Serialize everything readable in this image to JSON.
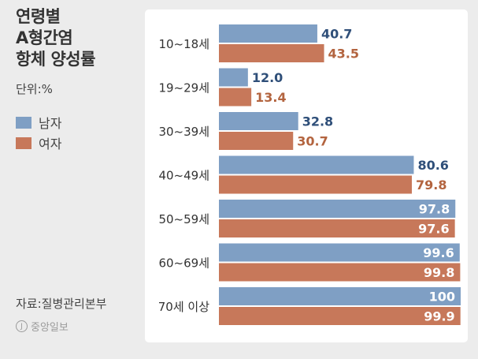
{
  "title_lines": [
    "연령별",
    "A형간염",
    "항체 양성률"
  ],
  "unit": "단위:%",
  "legend": [
    {
      "label": "남자",
      "color": "#7f9fc4"
    },
    {
      "label": "여자",
      "color": "#c7785a"
    }
  ],
  "source": "자료:질병관리본부",
  "logo_text": "중앙일보",
  "colors": {
    "male_bar": "#7f9fc4",
    "female_bar": "#c7785a",
    "male_label": "#2f4f79",
    "female_label": "#b3643f",
    "bar_label_inside": "#ffffff"
  },
  "chart_data": {
    "type": "bar",
    "orientation": "horizontal",
    "categories": [
      "10~18세",
      "19~29세",
      "30~39세",
      "40~49세",
      "50~59세",
      "60~69세",
      "70세 이상"
    ],
    "series": [
      {
        "name": "남자",
        "values": [
          40.7,
          12.0,
          32.8,
          80.6,
          97.8,
          99.6,
          100
        ],
        "labels": [
          "40.7",
          "12.0",
          "32.8",
          "80.6",
          "97.8",
          "99.6",
          "100"
        ]
      },
      {
        "name": "여자",
        "values": [
          43.5,
          13.4,
          30.7,
          79.8,
          97.6,
          99.8,
          99.9
        ],
        "labels": [
          "43.5",
          "13.4",
          "30.7",
          "79.8",
          "97.6",
          "99.8",
          "99.9"
        ]
      }
    ],
    "xlim": [
      0,
      100
    ],
    "grid": false,
    "legend_position": "left"
  }
}
